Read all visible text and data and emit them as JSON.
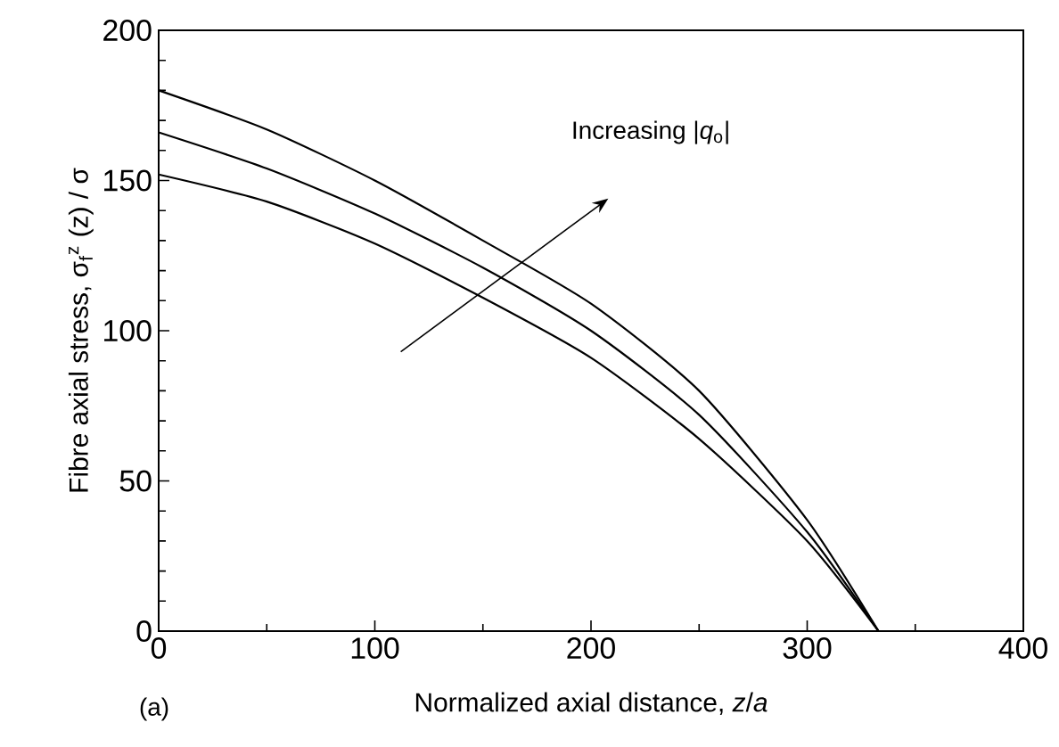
{
  "chart_data": {
    "type": "line",
    "xlabel": "Normalized axial distance, *z*/*a*",
    "ylabel": "Fibre axial stress, σ$_{f}$$^{z}$ (z) / σ",
    "annotations": [
      "Increasing |*q*$_{o}$|",
      "(a)"
    ],
    "x": [
      0,
      50,
      100,
      150,
      200,
      250,
      300,
      333
    ],
    "series": [
      {
        "color": "#000000",
        "values": [
          180,
          167,
          150,
          130,
          109,
          80,
          37,
          0
        ]
      },
      {
        "color": "#000000",
        "values": [
          166,
          154,
          139,
          121,
          100,
          72,
          33,
          0
        ]
      },
      {
        "color": "#000000",
        "values": [
          152,
          143,
          129,
          111,
          91,
          64,
          30,
          0
        ]
      }
    ],
    "xlim": [
      0,
      400
    ],
    "ylim": [
      0,
      200
    ],
    "xticks": [
      0,
      100,
      200,
      300,
      400
    ],
    "yticks": [
      0,
      50,
      100,
      150,
      200
    ],
    "grid": false,
    "marker": "none",
    "line_style": "solid"
  }
}
